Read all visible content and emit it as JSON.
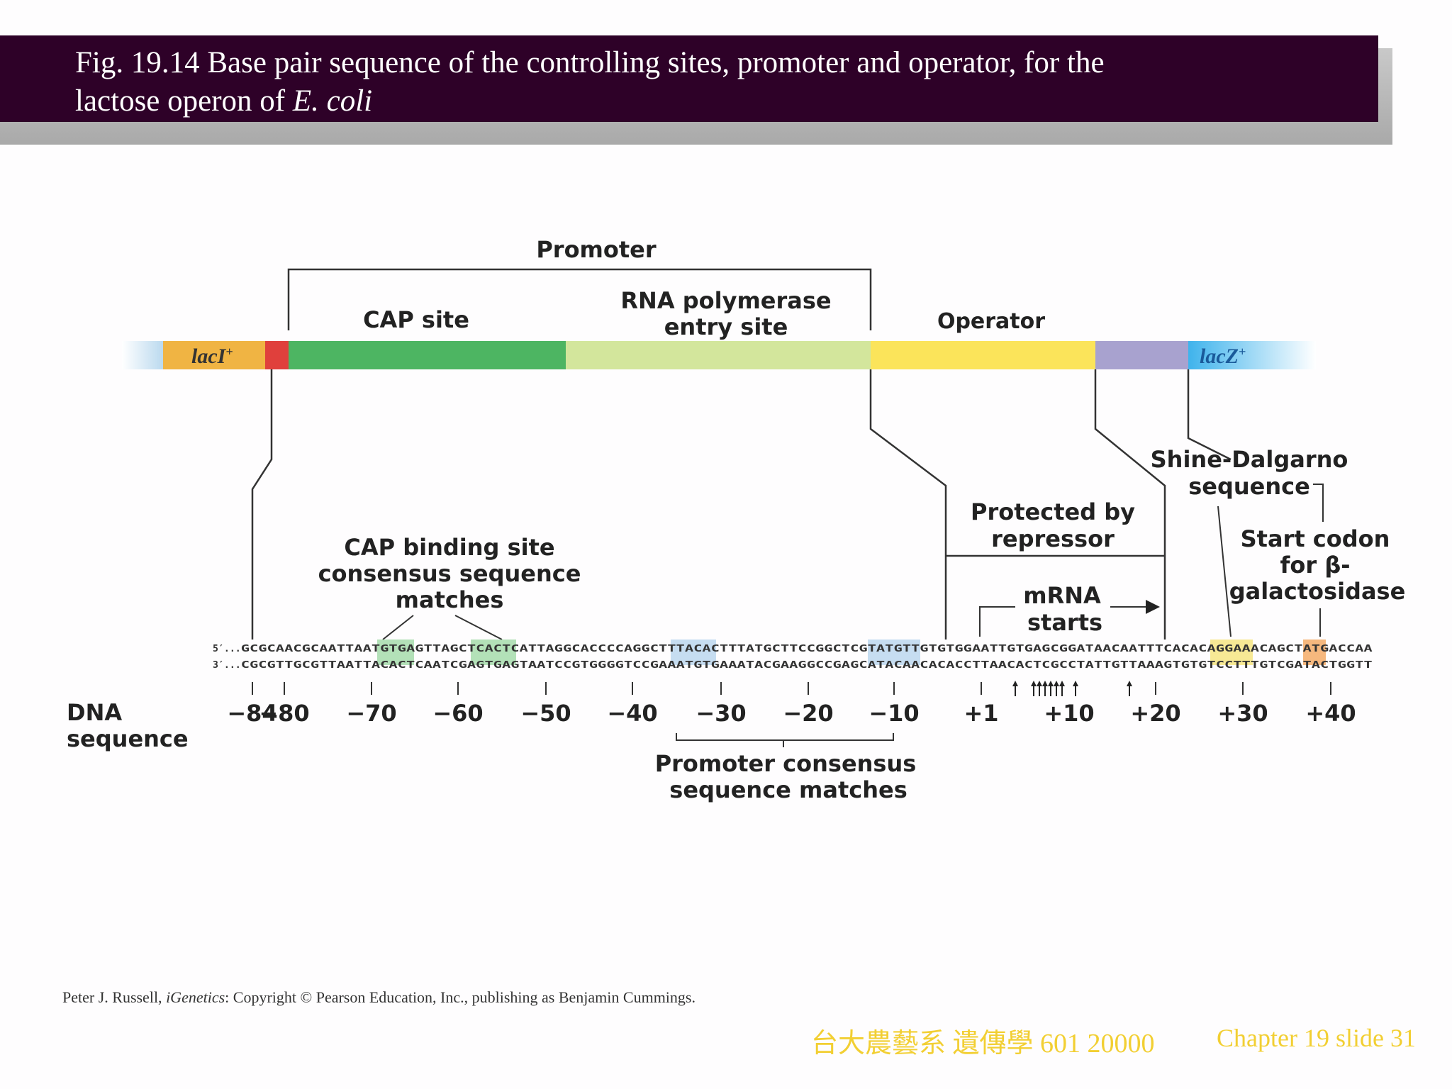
{
  "title": {
    "line1": "Fig. 19.14  Base pair sequence of the controlling sites, promoter and operator, for the",
    "line2_prefix": "lactose operon of ",
    "line2_italic": "E. coli"
  },
  "diagram": {
    "promoter_label": "Promoter",
    "cap_site_label": "CAP site",
    "rnap_line1": "RNA polymerase",
    "rnap_line2": "entry site",
    "operator_label": "Operator",
    "lacI_label": "lacI",
    "lacI_sup": "+",
    "lacZ_label": "lacZ",
    "lacZ_sup": "+",
    "shine_line1": "Shine-Dalgarno",
    "shine_line2": "sequence",
    "protected_line1": "Protected by",
    "protected_line2": "repressor",
    "start_line1": "Start codon",
    "start_line2": "for β-",
    "start_line3": "galactosidase",
    "cap_binding_line1": "CAP binding site",
    "cap_binding_line2": "consensus sequence",
    "cap_binding_line3": "matches",
    "mrna_line1": "mRNA",
    "mrna_line2": "starts",
    "dna_line1": "DNA",
    "dna_line2": "sequence",
    "promoter_consensus_line1": "Promoter consensus",
    "promoter_consensus_line2": "sequence matches",
    "strand5_prefix": "5′...",
    "strand5": "GCGCAACGCAATTAATGTGAGTTAGCTCACTCATTAGGCACCCCAGGCTTTACACTTTATGCTTCCGGCTCGTATGTTGTGTGGAATTGTGAGCGGATAACAATTTCACACAGGAAACAGCTATGACCAA",
    "strand3_prefix": "3′...",
    "strand3": "CGCGTTGCGTTAATTACACTCAATCGAGTGAGTAATCCGTGGGGTCCGAAATGTGAAATACGAAGGCCGAGCATACAACACACCTTAACACTCGCCTATTGTTAAAGTGTGTCCTTTGTCGATACTGGTT",
    "positions": [
      "−84",
      "−80",
      "−70",
      "−60",
      "−50",
      "−40",
      "−30",
      "−20",
      "−10",
      "+1",
      "+10",
      "+20",
      "+30",
      "+40"
    ]
  },
  "colors": {
    "title_bg": "#2e0128",
    "lacI": "#f0b443",
    "cap_red": "#e0403c",
    "cap_site": "#4db562",
    "rnap_site": "#d3e69c",
    "operator": "#fbe45a",
    "spacer": "#a8a2cf",
    "lacZ": "#4ab5e8",
    "footer": "#f2cf33"
  },
  "credit": {
    "prefix": "Peter J. Russell, ",
    "italic": "iGenetics",
    "suffix": ": Copyright © Pearson Education, Inc., publishing as Benjamin Cummings."
  },
  "footer": {
    "left": "台大農藝系 遺傳學 601 20000",
    "right": "Chapter 19 slide 31"
  }
}
